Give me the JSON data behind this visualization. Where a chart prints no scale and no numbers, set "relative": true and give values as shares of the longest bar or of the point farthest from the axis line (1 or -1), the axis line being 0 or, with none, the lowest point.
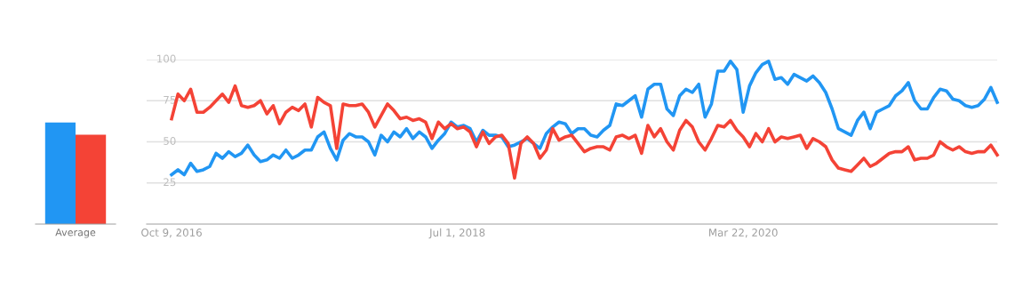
{
  "chart_data": [
    {
      "type": "bar",
      "categories": [
        "Average"
      ],
      "relative": true,
      "series": [
        {
          "color": "#2196f3",
          "values": [
            1
          ]
        },
        {
          "color": "#f44336",
          "values": [
            0.88
          ]
        }
      ]
    },
    {
      "type": "line",
      "x": [
        "2016-10-09",
        "2016-10-23",
        "2016-11-06",
        "2016-11-20",
        "2016-12-04",
        "2016-12-18",
        "2017-01-01",
        "2017-01-15",
        "2017-01-29",
        "2017-02-12",
        "2017-02-26",
        "2017-03-12",
        "2017-03-26",
        "2017-04-09",
        "2017-04-23",
        "2017-05-07",
        "2017-05-21",
        "2017-06-04",
        "2017-06-18",
        "2017-07-02",
        "2017-07-16",
        "2017-07-30",
        "2017-08-13",
        "2017-08-27",
        "2017-09-10",
        "2017-09-24",
        "2017-10-08",
        "2017-10-22",
        "2017-11-05",
        "2017-11-19",
        "2017-12-03",
        "2017-12-17",
        "2017-12-31",
        "2018-01-14",
        "2018-01-28",
        "2018-02-11",
        "2018-02-25",
        "2018-03-11",
        "2018-03-25",
        "2018-04-08",
        "2018-04-22",
        "2018-05-06",
        "2018-05-20",
        "2018-06-03",
        "2018-06-17",
        "2018-07-01",
        "2018-07-15",
        "2018-07-29",
        "2018-08-12",
        "2018-08-26",
        "2018-09-09",
        "2018-09-23",
        "2018-10-07",
        "2018-10-21",
        "2018-11-04",
        "2018-11-18",
        "2018-12-02",
        "2018-12-16",
        "2018-12-30",
        "2019-01-13",
        "2019-01-27",
        "2019-02-10",
        "2019-02-24",
        "2019-03-10",
        "2019-03-24",
        "2019-04-07",
        "2019-04-21",
        "2019-05-05",
        "2019-05-19",
        "2019-06-02",
        "2019-06-16",
        "2019-06-30",
        "2019-07-14",
        "2019-07-28",
        "2019-08-11",
        "2019-08-25",
        "2019-09-08",
        "2019-09-22",
        "2019-10-06",
        "2019-10-20",
        "2019-11-03",
        "2019-11-17",
        "2019-12-01",
        "2019-12-15",
        "2019-12-29",
        "2020-01-12",
        "2020-01-26",
        "2020-02-09",
        "2020-02-23",
        "2020-03-08",
        "2020-03-22",
        "2020-04-05",
        "2020-04-19",
        "2020-05-03",
        "2020-05-17",
        "2020-05-31",
        "2020-06-14",
        "2020-06-28",
        "2020-07-12",
        "2020-07-26",
        "2020-08-09",
        "2020-08-23",
        "2020-09-06",
        "2020-09-20",
        "2020-10-04",
        "2020-10-18",
        "2020-11-01",
        "2020-11-15",
        "2020-11-29",
        "2020-12-13",
        "2020-12-27",
        "2021-01-10",
        "2021-01-24",
        "2021-02-07",
        "2021-02-21",
        "2021-03-07",
        "2021-03-21",
        "2021-04-04",
        "2021-04-18",
        "2021-05-02",
        "2021-05-16",
        "2021-05-30",
        "2021-06-13",
        "2021-06-27",
        "2021-07-11",
        "2021-07-25",
        "2021-08-08",
        "2021-08-22",
        "2021-09-05",
        "2021-09-19",
        "2021-10-03"
      ],
      "series": [
        {
          "color": "#2196f3",
          "values": [
            30,
            33,
            30,
            37,
            32,
            33,
            35,
            43,
            40,
            44,
            41,
            43,
            48,
            42,
            38,
            39,
            42,
            40,
            45,
            40,
            42,
            45,
            45,
            53,
            56,
            46,
            39,
            51,
            55,
            53,
            53,
            50,
            42,
            54,
            50,
            56,
            53,
            58,
            52,
            56,
            53,
            46,
            51,
            55,
            62,
            59,
            60,
            58,
            50,
            57,
            54,
            54,
            53,
            47,
            48,
            50,
            52,
            49,
            46,
            55,
            59,
            62,
            61,
            55,
            58,
            58,
            54,
            53,
            57,
            60,
            73,
            72,
            75,
            78,
            65,
            82,
            85,
            85,
            70,
            66,
            78,
            82,
            80,
            85,
            65,
            73,
            93,
            93,
            99,
            94,
            68,
            84,
            92,
            97,
            99,
            88,
            89,
            85,
            91,
            89,
            87,
            90,
            86,
            80,
            70,
            58,
            56,
            54,
            63,
            68,
            58,
            68,
            70,
            72,
            78,
            81,
            86,
            75,
            70,
            70,
            77,
            82,
            81,
            76,
            75,
            72,
            71,
            72,
            76,
            83,
            74
          ]
        },
        {
          "color": "#f44336",
          "values": [
            64,
            79,
            75,
            82,
            68,
            68,
            71,
            75,
            79,
            74,
            84,
            72,
            71,
            72,
            75,
            67,
            72,
            61,
            68,
            71,
            69,
            73,
            59,
            77,
            74,
            72,
            46,
            73,
            72,
            72,
            73,
            68,
            59,
            66,
            73,
            69,
            64,
            65,
            63,
            64,
            62,
            52,
            62,
            58,
            61,
            58,
            59,
            56,
            47,
            56,
            49,
            53,
            54,
            49,
            28,
            49,
            53,
            49,
            40,
            45,
            58,
            51,
            53,
            54,
            49,
            44,
            46,
            47,
            47,
            45,
            53,
            54,
            52,
            54,
            43,
            60,
            53,
            58,
            50,
            45,
            57,
            63,
            59,
            50,
            45,
            52,
            60,
            59,
            63,
            57,
            53,
            47,
            55,
            50,
            58,
            50,
            53,
            52,
            53,
            54,
            46,
            52,
            50,
            47,
            39,
            34,
            33,
            32,
            36,
            40,
            35,
            37,
            40,
            43,
            44,
            44,
            47,
            39,
            40,
            40,
            42,
            50,
            47,
            45,
            47,
            44,
            43,
            44,
            44,
            48,
            42
          ]
        }
      ],
      "xlim": [
        "2016-08-15",
        "2021-10-03"
      ],
      "xticks": [
        {
          "value": "2016-10-09",
          "label": "Oct 9, 2016"
        },
        {
          "value": "2018-07-01",
          "label": "Jul 1, 2018"
        },
        {
          "value": "2020-03-22",
          "label": "Mar 22, 2020"
        }
      ],
      "ylim": [
        0,
        100
      ],
      "yticks": [
        25,
        50,
        75,
        100
      ],
      "grid": "y"
    }
  ]
}
